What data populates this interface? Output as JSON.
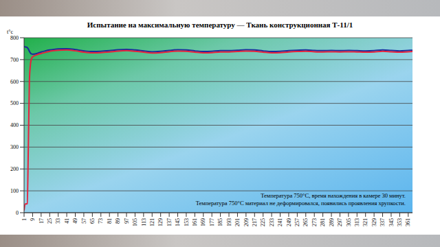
{
  "chart_data": {
    "type": "line",
    "title": "Испытание на максимальную температуру — Ткань конструкционная Т-11/1",
    "y_label": "t°c",
    "x": [
      1,
      2,
      3,
      4,
      5,
      6,
      7,
      8,
      9,
      13,
      17,
      21,
      25,
      29,
      33,
      41,
      49,
      57,
      65,
      73,
      81,
      89,
      97,
      105,
      113,
      121,
      129,
      137,
      145,
      153,
      161,
      169,
      177,
      185,
      193,
      201,
      209,
      217,
      225,
      233,
      241,
      249,
      257,
      265,
      273,
      281,
      289,
      297,
      305,
      313,
      321,
      329,
      337,
      345,
      353,
      361,
      365
    ],
    "series": [
      {
        "color": "#1a2a9c",
        "values": [
          760,
          758,
          757,
          755,
          748,
          738,
          730,
          726,
          725,
          728,
          735,
          740,
          744,
          747,
          749,
          750,
          746,
          740,
          737,
          738,
          741,
          745,
          747,
          744,
          740,
          736,
          738,
          742,
          745,
          744,
          740,
          737,
          738,
          741,
          741,
          743,
          745,
          744,
          740,
          737,
          738,
          741,
          743,
          744,
          742,
          741,
          742,
          741,
          742,
          741,
          740,
          741,
          744,
          742,
          740,
          742,
          743
        ]
      },
      {
        "color": "#e8203c",
        "values": [
          10,
          40,
          40,
          42,
          300,
          600,
          680,
          705,
          712,
          722,
          728,
          733,
          738,
          741,
          743,
          744,
          740,
          734,
          731,
          732,
          735,
          739,
          741,
          738,
          734,
          730,
          732,
          736,
          739,
          738,
          734,
          731,
          732,
          735,
          735,
          737,
          739,
          738,
          734,
          731,
          732,
          735,
          737,
          738,
          736,
          735,
          736,
          735,
          736,
          735,
          734,
          735,
          738,
          736,
          734,
          736,
          737
        ]
      }
    ],
    "xlim": [
      1,
      365
    ],
    "xticks": [
      1,
      9,
      17,
      25,
      33,
      41,
      49,
      57,
      65,
      73,
      81,
      89,
      97,
      105,
      113,
      121,
      129,
      137,
      145,
      153,
      161,
      169,
      177,
      185,
      193,
      201,
      209,
      217,
      225,
      233,
      241,
      249,
      257,
      265,
      273,
      281,
      289,
      297,
      305,
      313,
      321,
      329,
      337,
      345,
      353,
      361
    ],
    "ylim": [
      0,
      800
    ],
    "yticks": [
      0,
      100,
      200,
      300,
      400,
      500,
      600,
      700,
      800
    ],
    "grid": true,
    "annotations": [
      "Температура 750°C, время нахождения в камере 30 минут.",
      "Температура 750°C материал не деформировался, появились проявления хрупкости."
    ]
  }
}
